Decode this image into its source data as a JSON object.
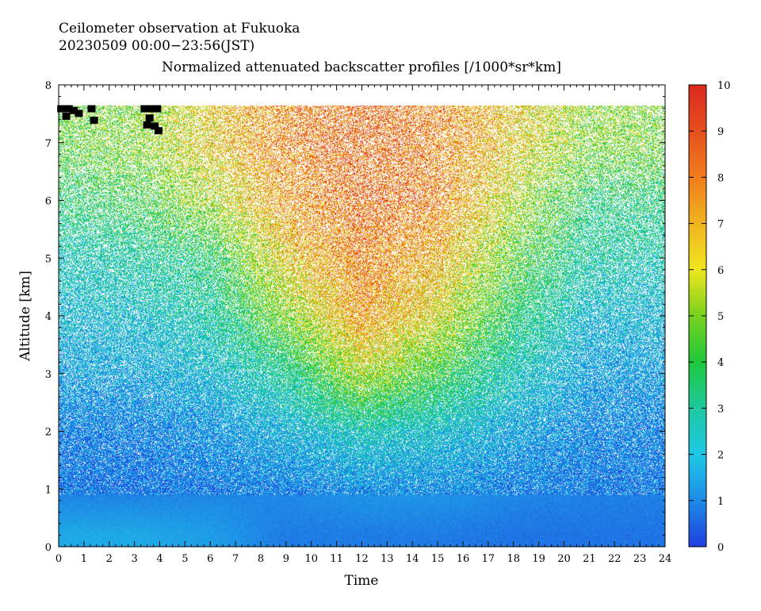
{
  "chart_data": {
    "type": "heatmap",
    "title_lines": [
      "Ceilometer observation at Fukuoka",
      "20230509  00:00−23:56(JST)"
    ],
    "subtitle": "Normalized attenuated backscatter profiles [/1000*sr*km]",
    "xlabel": "Time",
    "ylabel": "Altitude [km]",
    "xlim": [
      0,
      24
    ],
    "ylim": [
      0,
      8
    ],
    "x_ticks": [
      0,
      1,
      2,
      3,
      4,
      5,
      6,
      7,
      8,
      9,
      10,
      11,
      12,
      13,
      14,
      15,
      16,
      17,
      18,
      19,
      20,
      21,
      22,
      23,
      24
    ],
    "x_tick_labels": [
      "0",
      "1",
      "2",
      "3",
      "4",
      "5",
      "6",
      "7",
      "8",
      "9",
      "10",
      "11",
      "12",
      "13",
      "14",
      "15",
      "16",
      "17",
      "18",
      "19",
      "20",
      "21",
      "22",
      "23",
      "24"
    ],
    "y_ticks": [
      0,
      1,
      2,
      3,
      4,
      5,
      6,
      7,
      8
    ],
    "y_tick_labels": [
      "0",
      "1",
      "2",
      "3",
      "4",
      "5",
      "6",
      "7",
      "8"
    ],
    "colorbar": {
      "min": 0,
      "max": 10,
      "ticks": [
        0,
        1,
        2,
        3,
        4,
        5,
        6,
        7,
        8,
        9,
        10
      ],
      "tick_labels": [
        "0",
        "1",
        "2",
        "3",
        "4",
        "5",
        "6",
        "7",
        "8",
        "9",
        "10"
      ],
      "colors": [
        "#1f3fe0",
        "#1e8ce6",
        "#1ec8e6",
        "#1ec8a0",
        "#1ec83c",
        "#78d21e",
        "#f0e61e",
        "#f0b41e",
        "#f07d1e",
        "#e6501e",
        "#dc281e"
      ]
    },
    "data_top_altitude_km": 7.65,
    "grid": false,
    "profile_description_values": {
      "times_h": [
        0,
        3,
        6,
        9,
        12,
        15,
        18,
        21,
        24
      ],
      "altitudes_km": [
        0.2,
        1,
        2,
        3,
        4,
        5,
        6,
        7
      ],
      "values": [
        [
          1.5,
          1.5,
          1.3,
          0.8,
          0.8,
          0.8,
          0.7,
          0.7,
          0.7
        ],
        [
          0.8,
          0.8,
          0.9,
          1.0,
          1.2,
          1.2,
          1.0,
          0.9,
          0.9
        ],
        [
          1.0,
          1.0,
          1.3,
          1.8,
          2.5,
          2.2,
          1.6,
          1.1,
          1.0
        ],
        [
          1.5,
          1.6,
          2.0,
          3.0,
          5.5,
          4.0,
          2.5,
          1.5,
          1.4
        ],
        [
          2.0,
          2.2,
          2.8,
          5.0,
          7.5,
          6.0,
          3.5,
          2.0,
          1.9
        ],
        [
          2.5,
          2.8,
          3.5,
          6.5,
          8.0,
          7.0,
          4.5,
          2.8,
          2.6
        ],
        [
          3.5,
          4.0,
          5.5,
          7.5,
          8.5,
          8.0,
          5.5,
          3.5,
          3.4
        ],
        [
          4.5,
          5.0,
          6.5,
          8.0,
          8.5,
          8.0,
          6.5,
          5.0,
          4.8
        ]
      ]
    },
    "cloud_marks": [
      {
        "t": 0.1,
        "z": 7.58
      },
      {
        "t": 0.4,
        "z": 7.58
      },
      {
        "t": 0.6,
        "z": 7.55
      },
      {
        "t": 0.8,
        "z": 7.5
      },
      {
        "t": 1.3,
        "z": 7.58
      },
      {
        "t": 1.4,
        "z": 7.38
      },
      {
        "t": 3.4,
        "z": 7.58
      },
      {
        "t": 3.7,
        "z": 7.58
      },
      {
        "t": 3.6,
        "z": 7.42
      },
      {
        "t": 3.5,
        "z": 7.3
      },
      {
        "t": 3.8,
        "z": 7.28
      },
      {
        "t": 3.95,
        "z": 7.2
      },
      {
        "t": 0.3,
        "z": 7.45
      },
      {
        "t": 3.9,
        "z": 7.58
      }
    ]
  }
}
